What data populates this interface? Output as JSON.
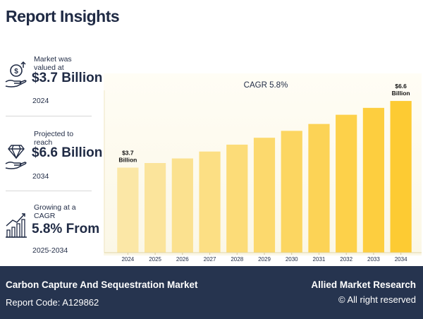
{
  "title": "Report Insights",
  "stats": [
    {
      "label": "Market was valued at",
      "value": "$3.7 Billion",
      "sub": "2024",
      "icon": "money-growth-icon"
    },
    {
      "label": "Projected to reach",
      "value": "$6.6 Billion",
      "sub": "2034",
      "icon": "diamond-hand-icon"
    },
    {
      "label": "Growing at a CAGR",
      "value": "5.8% From",
      "sub": "2025-2034",
      "icon": "growth-chart-icon"
    }
  ],
  "chart_data": {
    "type": "bar",
    "title": "CAGR 5.8%",
    "categories": [
      "2024",
      "2025",
      "2026",
      "2027",
      "2028",
      "2029",
      "2030",
      "2031",
      "2032",
      "2033",
      "2034"
    ],
    "values": [
      3.7,
      3.9,
      4.1,
      4.4,
      4.7,
      5.0,
      5.3,
      5.6,
      6.0,
      6.3,
      6.6
    ],
    "ylim": [
      0,
      7.8
    ],
    "annotations": [
      {
        "index": 0,
        "lines": [
          "$3.7",
          "Billion"
        ]
      },
      {
        "index": 10,
        "lines": [
          "$6.6",
          "Billion"
        ]
      }
    ],
    "colors": [
      "#fbe7a6",
      "#fcdf82",
      "#fdd45a",
      "#fdcb33"
    ]
  },
  "footer": {
    "market": "Carbon Capture And Sequestration Market",
    "code": "Report Code: A129862",
    "brand": "Allied Market Research",
    "rights": "© All right reserved"
  }
}
